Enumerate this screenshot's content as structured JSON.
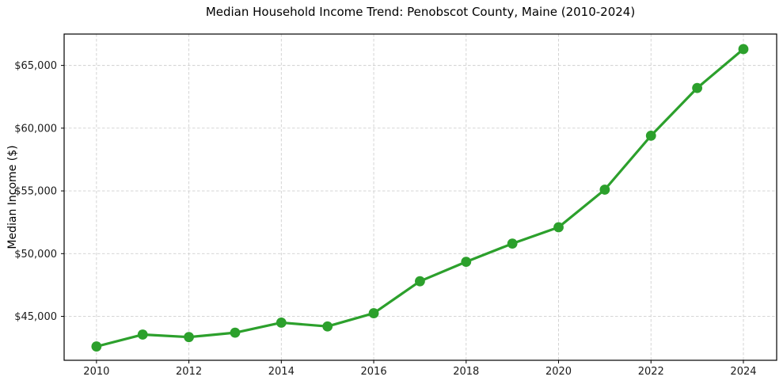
{
  "chart_data": {
    "type": "line",
    "title": "Median Household Income Trend: Penobscot County, Maine (2010-2024)",
    "xlabel": "",
    "ylabel": "Median Income ($)",
    "x": [
      2010,
      2011,
      2012,
      2013,
      2014,
      2015,
      2016,
      2017,
      2018,
      2019,
      2020,
      2021,
      2022,
      2023,
      2024
    ],
    "series": [
      {
        "name": "Median Household Income",
        "values": [
          42600,
          43550,
          43350,
          43700,
          44500,
          44200,
          45250,
          47800,
          49350,
          50800,
          52100,
          55100,
          59400,
          63200,
          66300
        ]
      }
    ],
    "xticks": [
      2010,
      2012,
      2014,
      2016,
      2018,
      2020,
      2022,
      2024
    ],
    "yticks": [
      45000,
      50000,
      55000,
      60000,
      65000
    ],
    "ytick_labels": [
      "$45,000",
      "$50,000",
      "$55,000",
      "$60,000",
      "$65,000"
    ],
    "xlim": [
      2009.3,
      2024.72
    ],
    "ylim": [
      41500,
      67500
    ],
    "grid": true,
    "legend": "none",
    "colors": {
      "line": "#2ca02c",
      "marker": "#2ca02c",
      "grid": "#cfcfcf",
      "spine": "#000000",
      "text": "#1a1a1a",
      "background": "#ffffff"
    }
  }
}
